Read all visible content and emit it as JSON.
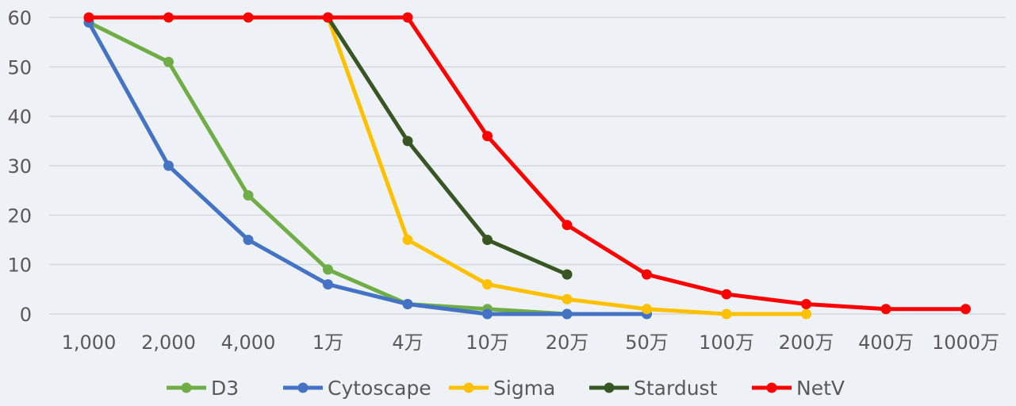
{
  "chart_data": {
    "type": "line",
    "title": "",
    "xlabel": "",
    "ylabel": "",
    "ylim": [
      0,
      60
    ],
    "yticks": [
      0,
      10,
      20,
      30,
      40,
      50,
      60
    ],
    "grid": true,
    "legend_position": "bottom",
    "categories": [
      "1,000",
      "2,000",
      "4,000",
      "1万",
      "4万",
      "10万",
      "20万",
      "50万",
      "100万",
      "200万",
      "400万",
      "1000万"
    ],
    "series": [
      {
        "name": "D3",
        "color": "#70ad47",
        "values": [
          59,
          51,
          24,
          9,
          2,
          1,
          0,
          null,
          null,
          null,
          null,
          null
        ]
      },
      {
        "name": "Cytoscape",
        "color": "#4472c4",
        "values": [
          59,
          30,
          15,
          6,
          2,
          0,
          0,
          0,
          null,
          null,
          null,
          null
        ]
      },
      {
        "name": "Sigma",
        "color": "#ffc000",
        "values": [
          null,
          null,
          null,
          60,
          15,
          6,
          3,
          1,
          0,
          0,
          null,
          null
        ]
      },
      {
        "name": "Stardust",
        "color": "#375623",
        "values": [
          null,
          null,
          null,
          60,
          35,
          15,
          8,
          null,
          null,
          null,
          null,
          null
        ]
      },
      {
        "name": "NetV",
        "color": "#ff0000",
        "values": [
          60,
          60,
          60,
          60,
          60,
          36,
          18,
          8,
          4,
          2,
          1,
          1
        ]
      }
    ]
  }
}
